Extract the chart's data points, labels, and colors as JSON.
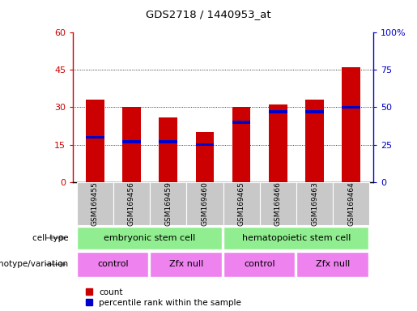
{
  "title": "GDS2718 / 1440953_at",
  "samples": [
    "GSM169455",
    "GSM169456",
    "GSM169459",
    "GSM169460",
    "GSM169465",
    "GSM169466",
    "GSM169463",
    "GSM169464"
  ],
  "count_values": [
    33,
    30,
    26,
    20,
    30,
    31,
    33,
    46
  ],
  "percentile_values": [
    30,
    27,
    27,
    25,
    40,
    47,
    47,
    50
  ],
  "left_ylim": [
    0,
    60
  ],
  "right_ylim": [
    0,
    100
  ],
  "left_yticks": [
    0,
    15,
    30,
    45,
    60
  ],
  "right_yticks": [
    0,
    25,
    50,
    75,
    100
  ],
  "right_yticklabels": [
    "0",
    "25",
    "50",
    "75",
    "100%"
  ],
  "left_color": "#cc0000",
  "right_color": "#0000cc",
  "bar_width": 0.5,
  "cell_type_groups": [
    {
      "label": "embryonic stem cell",
      "start": 0,
      "end": 3,
      "color": "#90ee90"
    },
    {
      "label": "hematopoietic stem cell",
      "start": 4,
      "end": 7,
      "color": "#90ee90"
    }
  ],
  "genotype_groups": [
    {
      "label": "control",
      "start": 0,
      "end": 1,
      "color": "#ee82ee"
    },
    {
      "label": "Zfx null",
      "start": 2,
      "end": 3,
      "color": "#ee82ee"
    },
    {
      "label": "control",
      "start": 4,
      "end": 5,
      "color": "#ee82ee"
    },
    {
      "label": "Zfx null",
      "start": 6,
      "end": 7,
      "color": "#ee82ee"
    }
  ],
  "sample_box_color": "#c8c8c8",
  "legend_items": [
    {
      "label": "count",
      "color": "#cc0000"
    },
    {
      "label": "percentile rank within the sample",
      "color": "#0000cc"
    }
  ]
}
